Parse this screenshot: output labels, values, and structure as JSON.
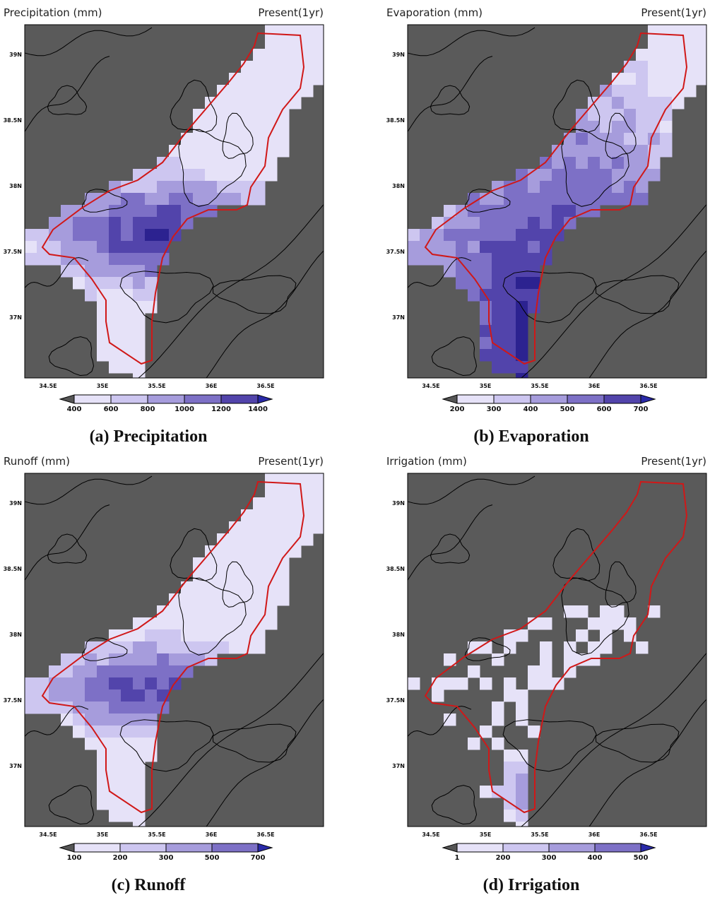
{
  "panels": [
    {
      "title": "Precipitation (mm)",
      "period": "Present(1yr)",
      "lat_labels": [
        "39N",
        "38.5N",
        "38N",
        "37.5N",
        "37N"
      ],
      "lon_labels": [
        "34.5E",
        "35E",
        "35.5E",
        "36E",
        "36.5E"
      ],
      "colorbar_labels": [
        400,
        600,
        800,
        1000,
        1200,
        1400
      ],
      "caption": "(a) Precipitation"
    },
    {
      "title": "Evaporation (mm)",
      "period": "Present(1yr)",
      "lat_labels": [
        "39N",
        "38.5N",
        "38N",
        "37.5N",
        "37N"
      ],
      "lon_labels": [
        "34.5E",
        "35E",
        "35.5E",
        "36E",
        "36.5E"
      ],
      "colorbar_labels": [
        200,
        300,
        400,
        500,
        600,
        700
      ],
      "caption": "(b) Evaporation"
    },
    {
      "title": "Runoff (mm)",
      "period": "Present(1yr)",
      "lat_labels": [
        "39N",
        "38.5N",
        "38N",
        "37.5N",
        "37N"
      ],
      "lon_labels": [
        "34.5E",
        "35E",
        "35.5E",
        "36E",
        "36.5E"
      ],
      "colorbar_labels": [
        100,
        200,
        300,
        500,
        700
      ],
      "caption": "(c) Runoff"
    },
    {
      "title": "Irrigation (mm)",
      "period": "Present(1yr)",
      "lat_labels": [
        "39N",
        "38.5N",
        "38N",
        "37.5N",
        "37N"
      ],
      "lon_labels": [
        "34.5E",
        "35E",
        "35.5E",
        "36E",
        "36.5E"
      ],
      "colorbar_labels": [
        1,
        200,
        300,
        400,
        500
      ],
      "caption": "(d) Irrigation"
    }
  ]
}
